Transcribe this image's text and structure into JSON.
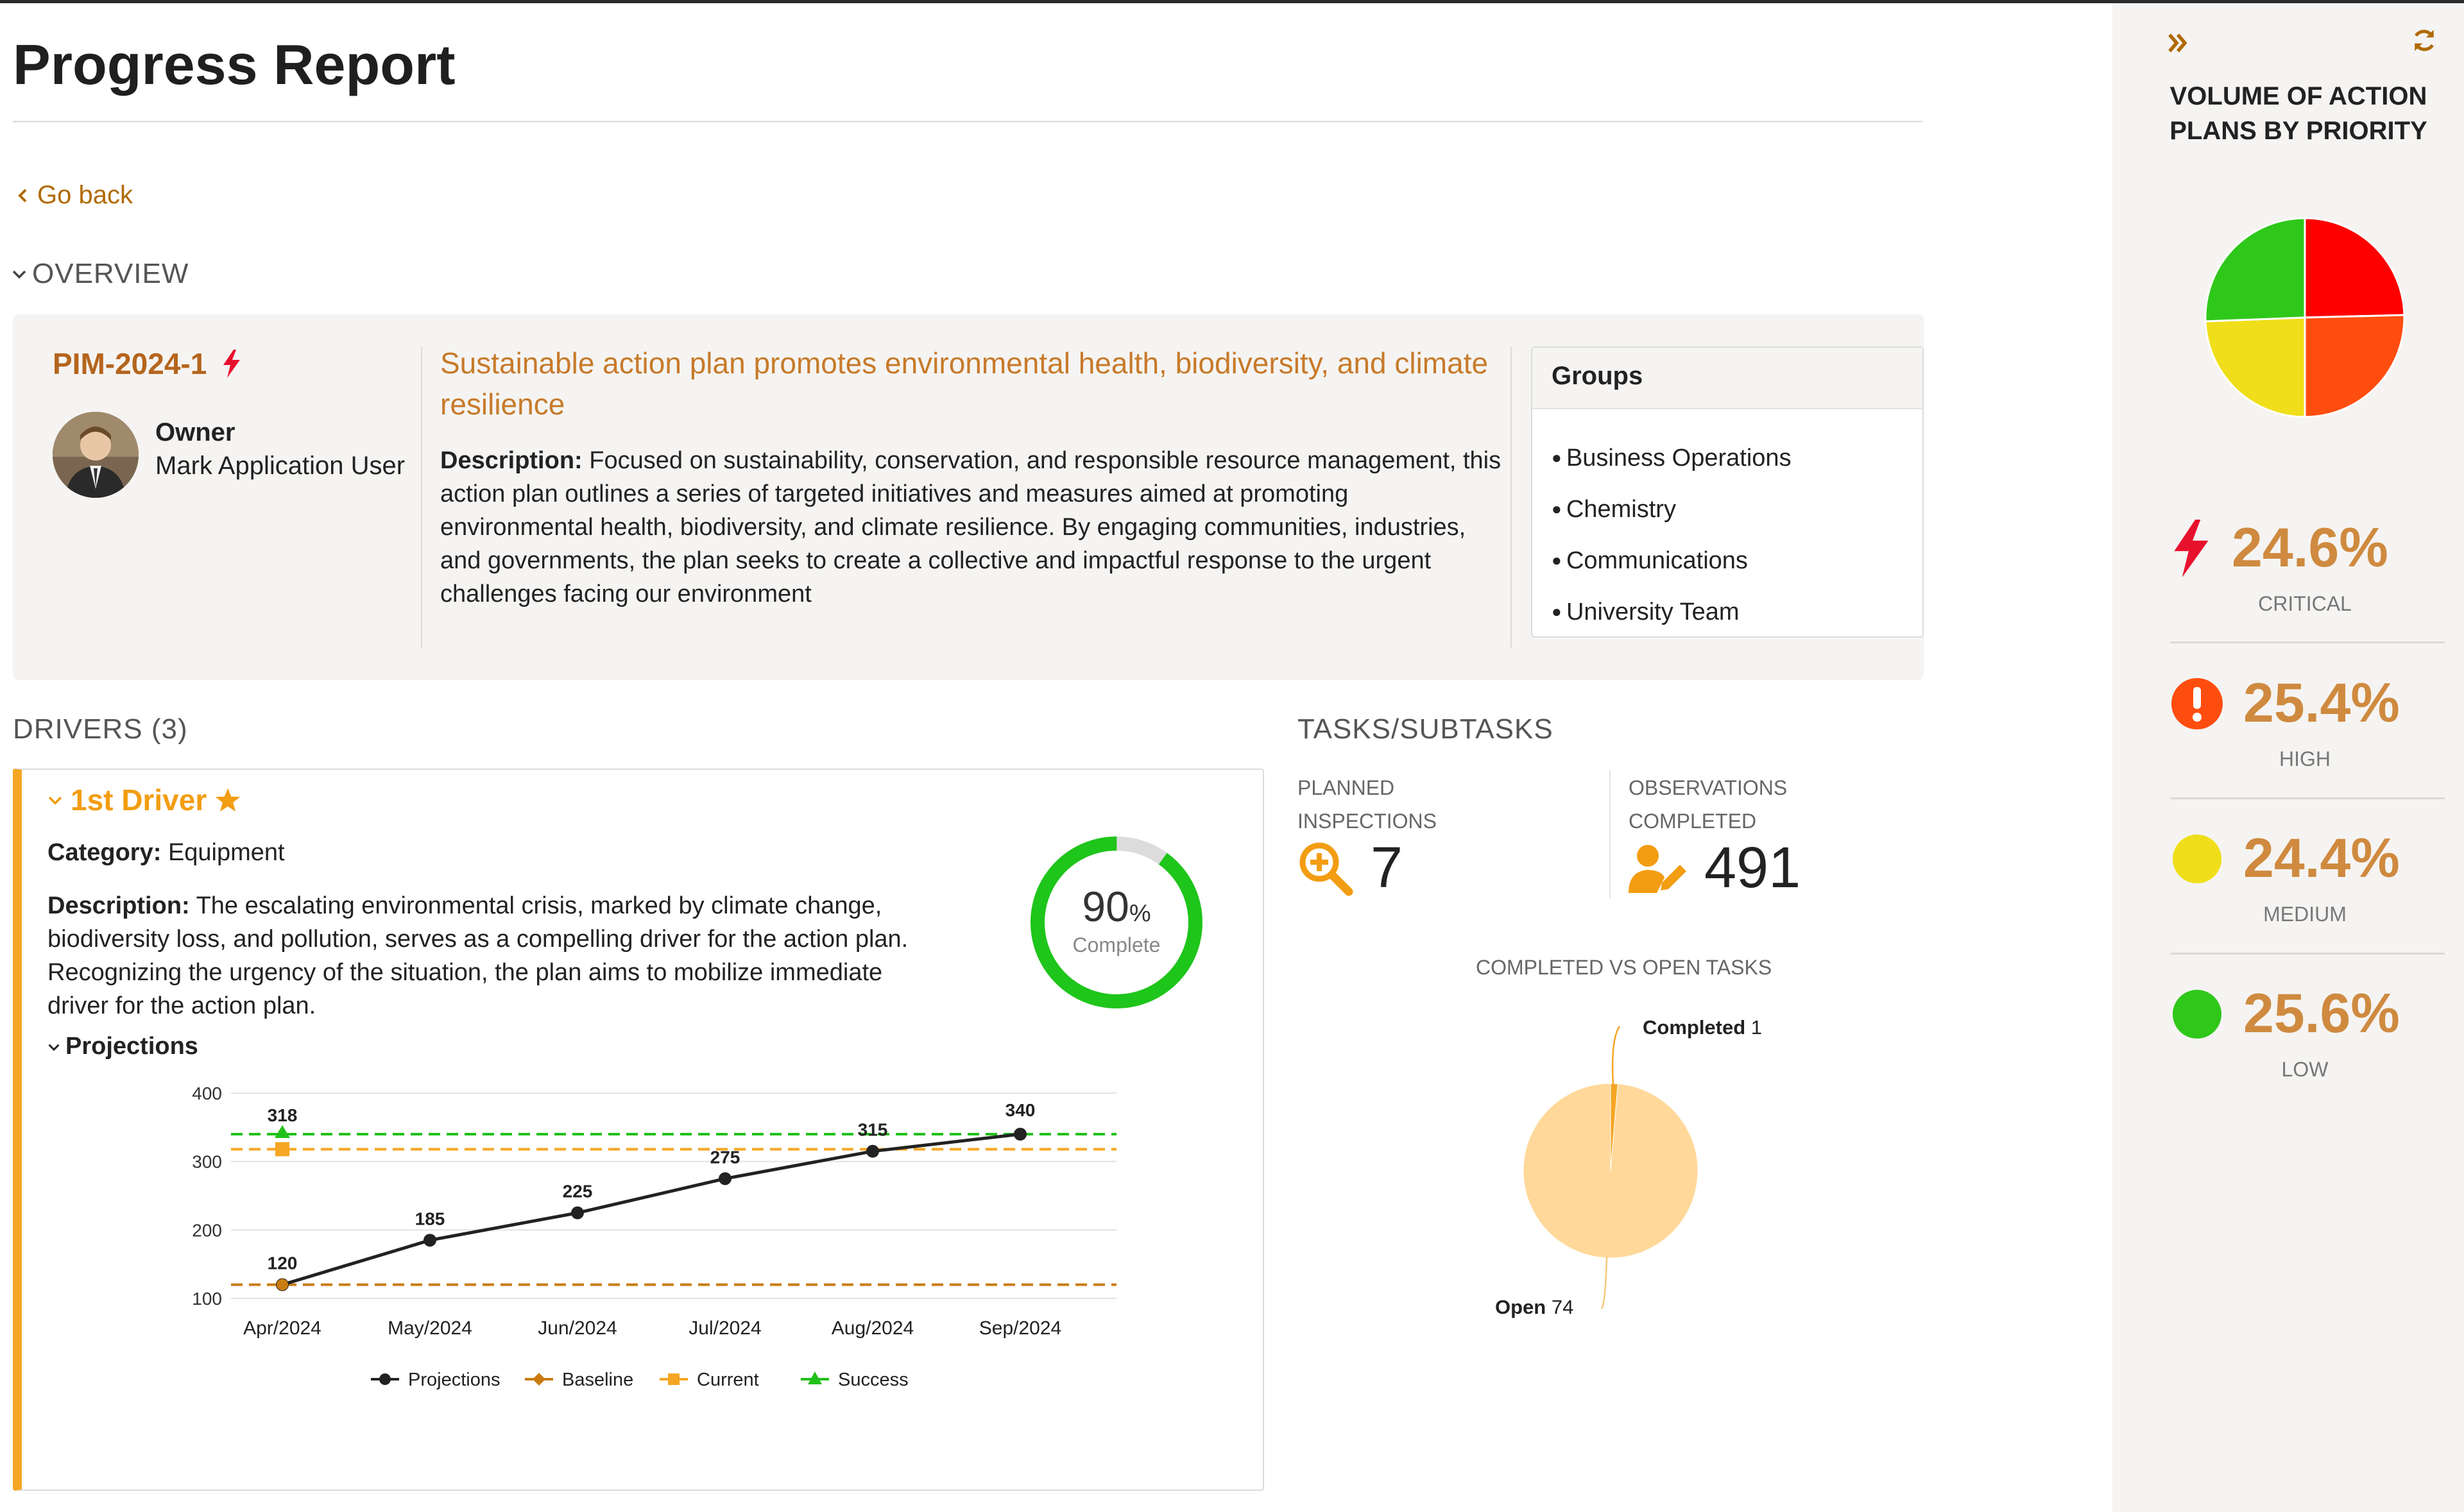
{
  "page": {
    "title": "Progress Report",
    "go_back": "Go back"
  },
  "overview": {
    "heading": "OVERVIEW",
    "id": "PIM-2024-1",
    "owner_label": "Owner",
    "owner_name": "Mark Application User",
    "title": "Sustainable action plan promotes environmental health, biodiversity, and climate resilience",
    "description_label": "Description:",
    "description": "Focused on sustainability, conservation, and responsible resource management, this action plan outlines a series of targeted initiatives and measures aimed at promoting environmental health, biodiversity, and climate resilience. By engaging communities, industries, and governments, the plan seeks to create a collective and impactful response to the urgent challenges facing our environment",
    "groups_title": "Groups",
    "groups": [
      "Business Operations",
      "Chemistry",
      "Communications",
      "University Team"
    ]
  },
  "drivers": {
    "heading": "DRIVERS (3)",
    "driver": {
      "title": "1st Driver",
      "category_label": "Category:",
      "category": "Equipment",
      "description_label": "Description:",
      "description": "The escalating environmental crisis, marked by climate change, biodiversity loss, and pollution, serves as a compelling driver for the action plan. Recognizing the urgency of the situation, the plan aims to mobilize immediate driver for the action plan.",
      "complete_value": "90",
      "complete_unit": "%",
      "complete_label": "Complete",
      "complete_fraction": 0.9,
      "projections_label": "Projections"
    }
  },
  "tasks": {
    "heading": "TASKS/SUBTASKS",
    "planned_label_1": "PLANNED",
    "planned_label_2": "INSPECTIONS",
    "planned_value": "7",
    "obs_label_1": "OBSERVATIONS",
    "obs_label_2": "COMPLETED",
    "obs_value": "491",
    "chart_title": "COMPLETED VS OPEN TASKS",
    "completed_label": "Completed",
    "completed_value": "1",
    "open_label": "Open",
    "open_value": "74"
  },
  "side": {
    "title_line1": "VOLUME OF ACTION",
    "title_line2": "PLANS BY PRIORITY",
    "priorities": [
      {
        "pct": "24.6%",
        "name": "CRITICAL",
        "color": "#ff0000"
      },
      {
        "pct": "25.4%",
        "name": "HIGH",
        "color": "#ff4d0f"
      },
      {
        "pct": "24.4%",
        "name": "MEDIUM",
        "color": "#efde19"
      },
      {
        "pct": "25.6%",
        "name": "LOW",
        "color": "#2fc81a"
      }
    ]
  },
  "chart_data": [
    {
      "type": "line",
      "x": [
        "Apr/2024",
        "May/2024",
        "Jun/2024",
        "Jul/2024",
        "Aug/2024",
        "Sep/2024"
      ],
      "ylim": [
        100,
        400
      ],
      "yticks": [
        100,
        200,
        300,
        400
      ],
      "series": [
        {
          "name": "Projections",
          "values": [
            120,
            185,
            225,
            275,
            315,
            340
          ],
          "color": "#222222"
        },
        {
          "name": "Baseline",
          "values": [
            120,
            120,
            120,
            120,
            120,
            120
          ],
          "color": "#c97c12"
        },
        {
          "name": "Current",
          "values": [
            318,
            318,
            318,
            318,
            318,
            318
          ],
          "color": "#f5a623"
        },
        {
          "name": "Success",
          "values": [
            340,
            340,
            340,
            340,
            340,
            340
          ],
          "color": "#22c01a"
        }
      ],
      "data_labels": [
        "120",
        "185",
        "225",
        "275",
        "315",
        "340"
      ],
      "current_label": "318",
      "legend": "bottom",
      "grid": true
    },
    {
      "type": "pie",
      "title": "COMPLETED VS OPEN TASKS",
      "labels": [
        "Completed",
        "Open"
      ],
      "values": [
        1,
        74
      ],
      "colors": [
        "#f5a623",
        "#ffd89a"
      ]
    },
    {
      "type": "pie",
      "title": "VOLUME OF ACTION PLANS BY PRIORITY",
      "labels": [
        "CRITICAL",
        "HIGH",
        "MEDIUM",
        "LOW"
      ],
      "values": [
        24.6,
        25.4,
        24.4,
        25.6
      ],
      "colors": [
        "#ff0000",
        "#ff4d0f",
        "#efde19",
        "#2fc81a"
      ]
    }
  ]
}
